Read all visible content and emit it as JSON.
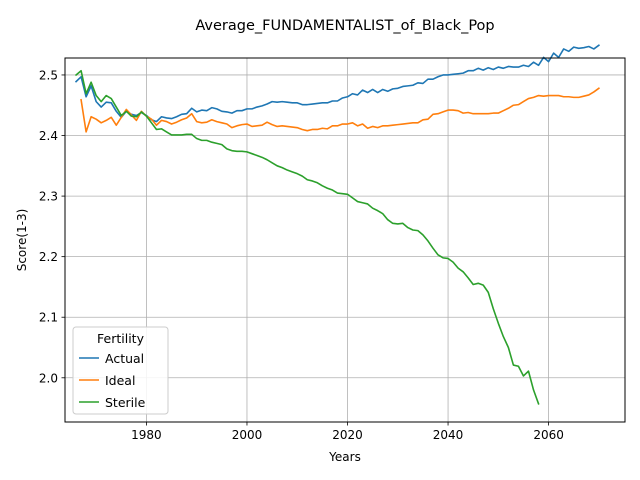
{
  "chart_data": {
    "type": "line",
    "title": "Average_FUNDAMENTALIST_of_Black_Pop",
    "xlabel": "Years",
    "ylabel": "Score(1-3)",
    "xlim": [
      1963.8,
      2075.2
    ],
    "ylim": [
      1.927,
      2.528
    ],
    "xticks": [
      1980,
      2000,
      2020,
      2040,
      2060
    ],
    "yticks": [
      2.0,
      2.1,
      2.2,
      2.3,
      2.4,
      2.5
    ],
    "xtick_labels": [
      "1980",
      "2000",
      "2020",
      "2040",
      "2060"
    ],
    "ytick_labels": [
      "2.0",
      "2.1",
      "2.2",
      "2.3",
      "2.4",
      "2.5"
    ],
    "grid": true,
    "legend": {
      "title": "Fertility",
      "placement": "lower-left"
    },
    "series": [
      {
        "name": "Actual",
        "color": "#1f77b4",
        "points": [
          [
            1966,
            2.489
          ],
          [
            1967,
            2.497
          ],
          [
            1968,
            2.464
          ],
          [
            1969,
            2.482
          ],
          [
            1970,
            2.456
          ],
          [
            1971,
            2.447
          ],
          [
            1972,
            2.455
          ],
          [
            1973,
            2.454
          ],
          [
            1974,
            2.44
          ],
          [
            1975,
            2.43
          ],
          [
            1976,
            2.44
          ],
          [
            1977,
            2.435
          ],
          [
            1978,
            2.433
          ],
          [
            1979,
            2.438
          ],
          [
            1980,
            2.433
          ],
          [
            1981,
            2.426
          ],
          [
            1982,
            2.423
          ],
          [
            1983,
            2.431
          ],
          [
            1984,
            2.429
          ],
          [
            1985,
            2.428
          ],
          [
            1986,
            2.431
          ],
          [
            1987,
            2.435
          ],
          [
            1988,
            2.436
          ],
          [
            1989,
            2.445
          ],
          [
            1990,
            2.439
          ],
          [
            1991,
            2.442
          ],
          [
            1992,
            2.441
          ],
          [
            1993,
            2.446
          ],
          [
            1994,
            2.444
          ],
          [
            1995,
            2.44
          ],
          [
            1996,
            2.439
          ],
          [
            1997,
            2.437
          ],
          [
            1998,
            2.441
          ],
          [
            1999,
            2.441
          ],
          [
            2000,
            2.444
          ],
          [
            2001,
            2.444
          ],
          [
            2002,
            2.447
          ],
          [
            2003,
            2.449
          ],
          [
            2004,
            2.452
          ],
          [
            2005,
            2.456
          ],
          [
            2006,
            2.455
          ],
          [
            2007,
            2.456
          ],
          [
            2008,
            2.455
          ],
          [
            2009,
            2.454
          ],
          [
            2010,
            2.454
          ],
          [
            2011,
            2.451
          ],
          [
            2012,
            2.451
          ],
          [
            2013,
            2.452
          ],
          [
            2014,
            2.453
          ],
          [
            2015,
            2.454
          ],
          [
            2016,
            2.454
          ],
          [
            2017,
            2.457
          ],
          [
            2018,
            2.457
          ],
          [
            2019,
            2.462
          ],
          [
            2020,
            2.464
          ],
          [
            2021,
            2.469
          ],
          [
            2022,
            2.467
          ],
          [
            2023,
            2.475
          ],
          [
            2024,
            2.471
          ],
          [
            2025,
            2.476
          ],
          [
            2026,
            2.471
          ],
          [
            2027,
            2.476
          ],
          [
            2028,
            2.473
          ],
          [
            2029,
            2.477
          ],
          [
            2030,
            2.478
          ],
          [
            2031,
            2.481
          ],
          [
            2032,
            2.482
          ],
          [
            2033,
            2.483
          ],
          [
            2034,
            2.487
          ],
          [
            2035,
            2.486
          ],
          [
            2036,
            2.493
          ],
          [
            2037,
            2.493
          ],
          [
            2038,
            2.497
          ],
          [
            2039,
            2.5
          ],
          [
            2040,
            2.5
          ],
          [
            2041,
            2.501
          ],
          [
            2042,
            2.502
          ],
          [
            2043,
            2.503
          ],
          [
            2044,
            2.507
          ],
          [
            2045,
            2.507
          ],
          [
            2046,
            2.511
          ],
          [
            2047,
            2.508
          ],
          [
            2048,
            2.512
          ],
          [
            2049,
            2.509
          ],
          [
            2050,
            2.513
          ],
          [
            2051,
            2.511
          ],
          [
            2052,
            2.514
          ],
          [
            2053,
            2.513
          ],
          [
            2054,
            2.513
          ],
          [
            2055,
            2.516
          ],
          [
            2056,
            2.514
          ],
          [
            2057,
            2.521
          ],
          [
            2058,
            2.516
          ],
          [
            2059,
            2.529
          ],
          [
            2060,
            2.522
          ],
          [
            2061,
            2.536
          ],
          [
            2062,
            2.529
          ],
          [
            2063,
            2.543
          ],
          [
            2064,
            2.539
          ],
          [
            2065,
            2.546
          ],
          [
            2066,
            2.544
          ],
          [
            2067,
            2.545
          ],
          [
            2068,
            2.547
          ],
          [
            2069,
            2.543
          ],
          [
            2070,
            2.549
          ]
        ]
      },
      {
        "name": "Ideal",
        "color": "#ff7f0e",
        "points": [
          [
            1967,
            2.459
          ],
          [
            1968,
            2.406
          ],
          [
            1969,
            2.431
          ],
          [
            1970,
            2.427
          ],
          [
            1971,
            2.421
          ],
          [
            1972,
            2.425
          ],
          [
            1973,
            2.43
          ],
          [
            1974,
            2.417
          ],
          [
            1975,
            2.43
          ],
          [
            1976,
            2.443
          ],
          [
            1977,
            2.434
          ],
          [
            1978,
            2.425
          ],
          [
            1979,
            2.44
          ],
          [
            1980,
            2.432
          ],
          [
            1981,
            2.427
          ],
          [
            1982,
            2.417
          ],
          [
            1983,
            2.425
          ],
          [
            1984,
            2.423
          ],
          [
            1985,
            2.419
          ],
          [
            1986,
            2.422
          ],
          [
            1987,
            2.426
          ],
          [
            1988,
            2.429
          ],
          [
            1989,
            2.436
          ],
          [
            1990,
            2.423
          ],
          [
            1991,
            2.421
          ],
          [
            1992,
            2.422
          ],
          [
            1993,
            2.426
          ],
          [
            1994,
            2.423
          ],
          [
            1995,
            2.421
          ],
          [
            1996,
            2.419
          ],
          [
            1997,
            2.413
          ],
          [
            1998,
            2.416
          ],
          [
            1999,
            2.418
          ],
          [
            2000,
            2.419
          ],
          [
            2001,
            2.415
          ],
          [
            2002,
            2.416
          ],
          [
            2003,
            2.417
          ],
          [
            2004,
            2.422
          ],
          [
            2005,
            2.418
          ],
          [
            2006,
            2.415
          ],
          [
            2007,
            2.416
          ],
          [
            2008,
            2.415
          ],
          [
            2009,
            2.414
          ],
          [
            2010,
            2.413
          ],
          [
            2011,
            2.41
          ],
          [
            2012,
            2.408
          ],
          [
            2013,
            2.41
          ],
          [
            2014,
            2.41
          ],
          [
            2015,
            2.412
          ],
          [
            2016,
            2.411
          ],
          [
            2017,
            2.416
          ],
          [
            2018,
            2.416
          ],
          [
            2019,
            2.419
          ],
          [
            2020,
            2.419
          ],
          [
            2021,
            2.421
          ],
          [
            2022,
            2.416
          ],
          [
            2023,
            2.419
          ],
          [
            2024,
            2.412
          ],
          [
            2025,
            2.415
          ],
          [
            2026,
            2.413
          ],
          [
            2027,
            2.416
          ],
          [
            2028,
            2.416
          ],
          [
            2029,
            2.417
          ],
          [
            2030,
            2.418
          ],
          [
            2031,
            2.419
          ],
          [
            2032,
            2.42
          ],
          [
            2033,
            2.421
          ],
          [
            2034,
            2.421
          ],
          [
            2035,
            2.426
          ],
          [
            2036,
            2.427
          ],
          [
            2037,
            2.435
          ],
          [
            2038,
            2.436
          ],
          [
            2039,
            2.439
          ],
          [
            2040,
            2.442
          ],
          [
            2041,
            2.442
          ],
          [
            2042,
            2.441
          ],
          [
            2043,
            2.437
          ],
          [
            2044,
            2.438
          ],
          [
            2045,
            2.436
          ],
          [
            2046,
            2.436
          ],
          [
            2047,
            2.436
          ],
          [
            2048,
            2.436
          ],
          [
            2049,
            2.437
          ],
          [
            2050,
            2.437
          ],
          [
            2051,
            2.441
          ],
          [
            2052,
            2.445
          ],
          [
            2053,
            2.45
          ],
          [
            2054,
            2.451
          ],
          [
            2055,
            2.456
          ],
          [
            2056,
            2.461
          ],
          [
            2057,
            2.463
          ],
          [
            2058,
            2.466
          ],
          [
            2059,
            2.465
          ],
          [
            2060,
            2.466
          ],
          [
            2061,
            2.466
          ],
          [
            2062,
            2.466
          ],
          [
            2063,
            2.464
          ],
          [
            2064,
            2.464
          ],
          [
            2065,
            2.463
          ],
          [
            2066,
            2.463
          ],
          [
            2067,
            2.465
          ],
          [
            2068,
            2.467
          ],
          [
            2069,
            2.472
          ],
          [
            2070,
            2.478
          ]
        ]
      },
      {
        "name": "Sterile",
        "color": "#2ca02c",
        "points": [
          [
            1966,
            2.5
          ],
          [
            1967,
            2.507
          ],
          [
            1968,
            2.469
          ],
          [
            1969,
            2.488
          ],
          [
            1970,
            2.466
          ],
          [
            1971,
            2.456
          ],
          [
            1972,
            2.466
          ],
          [
            1973,
            2.461
          ],
          [
            1974,
            2.447
          ],
          [
            1975,
            2.433
          ],
          [
            1976,
            2.44
          ],
          [
            1977,
            2.432
          ],
          [
            1978,
            2.431
          ],
          [
            1979,
            2.439
          ],
          [
            1980,
            2.432
          ],
          [
            1981,
            2.421
          ],
          [
            1982,
            2.41
          ],
          [
            1983,
            2.411
          ],
          [
            1984,
            2.406
          ],
          [
            1985,
            2.401
          ],
          [
            1986,
            2.401
          ],
          [
            1987,
            2.401
          ],
          [
            1988,
            2.402
          ],
          [
            1989,
            2.402
          ],
          [
            1990,
            2.395
          ],
          [
            1991,
            2.392
          ],
          [
            1992,
            2.392
          ],
          [
            1993,
            2.389
          ],
          [
            1994,
            2.387
          ],
          [
            1995,
            2.385
          ],
          [
            1996,
            2.378
          ],
          [
            1997,
            2.375
          ],
          [
            1998,
            2.374
          ],
          [
            1999,
            2.374
          ],
          [
            2000,
            2.373
          ],
          [
            2001,
            2.37
          ],
          [
            2002,
            2.367
          ],
          [
            2003,
            2.364
          ],
          [
            2004,
            2.36
          ],
          [
            2005,
            2.355
          ],
          [
            2006,
            2.35
          ],
          [
            2007,
            2.347
          ],
          [
            2008,
            2.343
          ],
          [
            2009,
            2.34
          ],
          [
            2010,
            2.337
          ],
          [
            2011,
            2.333
          ],
          [
            2012,
            2.327
          ],
          [
            2013,
            2.325
          ],
          [
            2014,
            2.322
          ],
          [
            2015,
            2.317
          ],
          [
            2016,
            2.313
          ],
          [
            2017,
            2.31
          ],
          [
            2018,
            2.305
          ],
          [
            2019,
            2.304
          ],
          [
            2020,
            2.303
          ],
          [
            2021,
            2.297
          ],
          [
            2022,
            2.291
          ],
          [
            2023,
            2.289
          ],
          [
            2024,
            2.287
          ],
          [
            2025,
            2.28
          ],
          [
            2026,
            2.276
          ],
          [
            2027,
            2.271
          ],
          [
            2028,
            2.261
          ],
          [
            2029,
            2.255
          ],
          [
            2030,
            2.254
          ],
          [
            2031,
            2.255
          ],
          [
            2032,
            2.248
          ],
          [
            2033,
            2.244
          ],
          [
            2034,
            2.243
          ],
          [
            2035,
            2.236
          ],
          [
            2036,
            2.226
          ],
          [
            2037,
            2.214
          ],
          [
            2038,
            2.203
          ],
          [
            2039,
            2.198
          ],
          [
            2040,
            2.197
          ],
          [
            2041,
            2.191
          ],
          [
            2042,
            2.181
          ],
          [
            2043,
            2.175
          ],
          [
            2044,
            2.165
          ],
          [
            2045,
            2.154
          ],
          [
            2046,
            2.156
          ],
          [
            2047,
            2.153
          ],
          [
            2048,
            2.141
          ],
          [
            2049,
            2.114
          ],
          [
            2050,
            2.09
          ],
          [
            2051,
            2.068
          ],
          [
            2052,
            2.05
          ],
          [
            2053,
            2.021
          ],
          [
            2054,
            2.019
          ],
          [
            2055,
            2.003
          ],
          [
            2056,
            2.011
          ],
          [
            2057,
            1.98
          ],
          [
            2058,
            1.957
          ]
        ]
      }
    ]
  }
}
